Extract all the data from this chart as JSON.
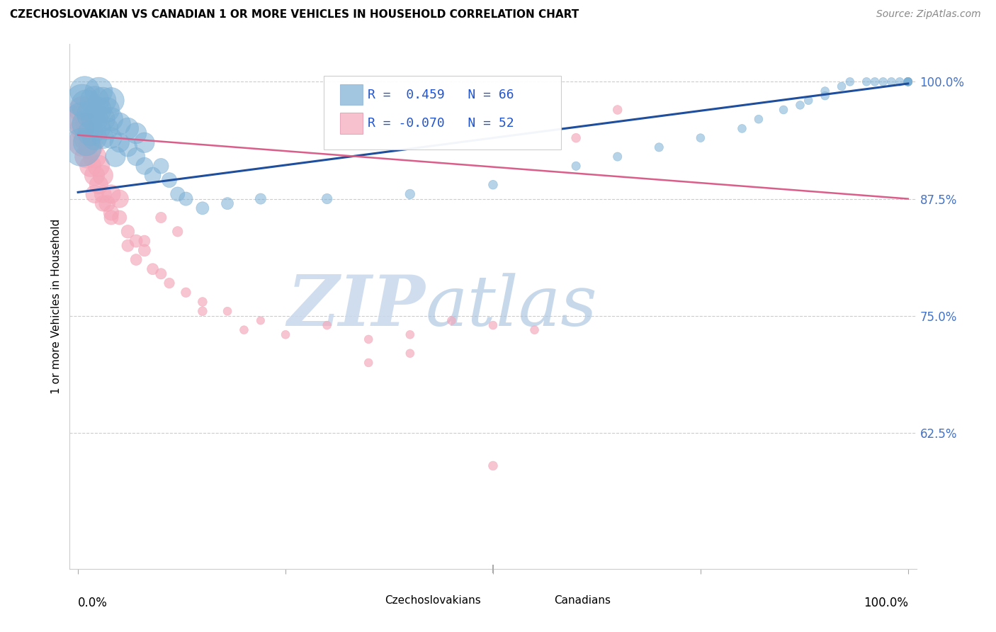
{
  "title": "CZECHOSLOVAKIAN VS CANADIAN 1 OR MORE VEHICLES IN HOUSEHOLD CORRELATION CHART",
  "source": "Source: ZipAtlas.com",
  "ylabel": "1 or more Vehicles in Household",
  "blue_R": 0.459,
  "blue_N": 66,
  "pink_R": -0.07,
  "pink_N": 52,
  "blue_color": "#7BAFD4",
  "pink_color": "#F4A7B9",
  "blue_line_color": "#1F4E9C",
  "pink_line_color": "#D95F8A",
  "ylim_low": 0.48,
  "ylim_high": 1.04,
  "xlim_low": -0.01,
  "xlim_high": 1.01,
  "ytick_vals": [
    0.625,
    0.75,
    0.875,
    1.0
  ],
  "ytick_labels": [
    "62.5%",
    "75.0%",
    "87.5%",
    "100.0%"
  ],
  "watermark_zip": "ZIP",
  "watermark_atlas": "atlas",
  "blue_scatter_x": [
    0.005,
    0.005,
    0.008,
    0.01,
    0.01,
    0.01,
    0.015,
    0.015,
    0.02,
    0.02,
    0.02,
    0.025,
    0.025,
    0.025,
    0.03,
    0.03,
    0.03,
    0.035,
    0.035,
    0.04,
    0.04,
    0.04,
    0.045,
    0.05,
    0.05,
    0.06,
    0.06,
    0.07,
    0.07,
    0.08,
    0.08,
    0.09,
    0.1,
    0.11,
    0.12,
    0.13,
    0.15,
    0.18,
    0.22,
    0.3,
    0.4,
    0.5,
    0.6,
    0.65,
    0.7,
    0.75,
    0.8,
    0.82,
    0.85,
    0.87,
    0.88,
    0.9,
    0.9,
    0.92,
    0.93,
    0.95,
    0.96,
    0.97,
    0.98,
    0.99,
    1.0,
    1.0,
    1.0,
    1.0,
    1.0,
    0.005
  ],
  "blue_scatter_y": [
    0.96,
    0.98,
    0.99,
    0.935,
    0.955,
    0.975,
    0.945,
    0.965,
    0.94,
    0.96,
    0.98,
    0.95,
    0.97,
    0.99,
    0.94,
    0.96,
    0.98,
    0.95,
    0.97,
    0.94,
    0.96,
    0.98,
    0.92,
    0.935,
    0.955,
    0.93,
    0.95,
    0.92,
    0.945,
    0.91,
    0.935,
    0.9,
    0.91,
    0.895,
    0.88,
    0.875,
    0.865,
    0.87,
    0.875,
    0.875,
    0.88,
    0.89,
    0.91,
    0.92,
    0.93,
    0.94,
    0.95,
    0.96,
    0.97,
    0.975,
    0.98,
    0.985,
    0.99,
    0.995,
    1.0,
    1.0,
    1.0,
    1.0,
    1.0,
    1.0,
    1.0,
    1.0,
    1.0,
    1.0,
    1.0,
    0.93
  ],
  "blue_scatter_size": [
    200,
    180,
    150,
    120,
    140,
    160,
    110,
    130,
    100,
    120,
    140,
    90,
    110,
    130,
    80,
    100,
    120,
    85,
    105,
    75,
    95,
    115,
    70,
    65,
    85,
    60,
    80,
    55,
    75,
    50,
    70,
    45,
    40,
    38,
    35,
    32,
    28,
    25,
    20,
    18,
    16,
    14,
    13,
    13,
    13,
    12,
    12,
    12,
    12,
    12,
    12,
    12,
    12,
    12,
    12,
    12,
    12,
    12,
    12,
    12,
    12,
    12,
    12,
    12,
    12,
    250
  ],
  "pink_scatter_x": [
    0.005,
    0.005,
    0.01,
    0.01,
    0.015,
    0.015,
    0.02,
    0.02,
    0.025,
    0.025,
    0.03,
    0.03,
    0.035,
    0.04,
    0.04,
    0.05,
    0.05,
    0.06,
    0.07,
    0.08,
    0.09,
    0.1,
    0.11,
    0.13,
    0.15,
    0.18,
    0.22,
    0.1,
    0.12,
    0.08,
    0.3,
    0.4,
    0.5,
    0.55,
    0.65,
    0.2,
    0.25,
    0.35,
    0.45,
    0.6,
    0.35,
    0.4,
    0.5,
    0.15,
    0.07,
    0.06,
    0.04,
    0.03,
    0.02,
    0.01,
    0.005,
    0.005
  ],
  "pink_scatter_y": [
    0.95,
    0.97,
    0.92,
    0.94,
    0.91,
    0.93,
    0.9,
    0.92,
    0.89,
    0.91,
    0.88,
    0.9,
    0.87,
    0.86,
    0.88,
    0.855,
    0.875,
    0.84,
    0.83,
    0.82,
    0.8,
    0.795,
    0.785,
    0.775,
    0.765,
    0.755,
    0.745,
    0.855,
    0.84,
    0.83,
    0.74,
    0.73,
    0.74,
    0.735,
    0.97,
    0.735,
    0.73,
    0.725,
    0.745,
    0.94,
    0.7,
    0.71,
    0.59,
    0.755,
    0.81,
    0.825,
    0.855,
    0.87,
    0.88,
    0.955,
    0.96,
    0.935
  ],
  "pink_scatter_size": [
    100,
    120,
    90,
    110,
    80,
    100,
    70,
    90,
    60,
    80,
    50,
    70,
    45,
    40,
    60,
    35,
    55,
    30,
    28,
    25,
    22,
    20,
    18,
    16,
    14,
    12,
    11,
    20,
    18,
    22,
    12,
    12,
    12,
    12,
    14,
    12,
    12,
    12,
    12,
    14,
    12,
    12,
    14,
    14,
    22,
    25,
    35,
    42,
    55,
    85,
    150,
    130
  ]
}
